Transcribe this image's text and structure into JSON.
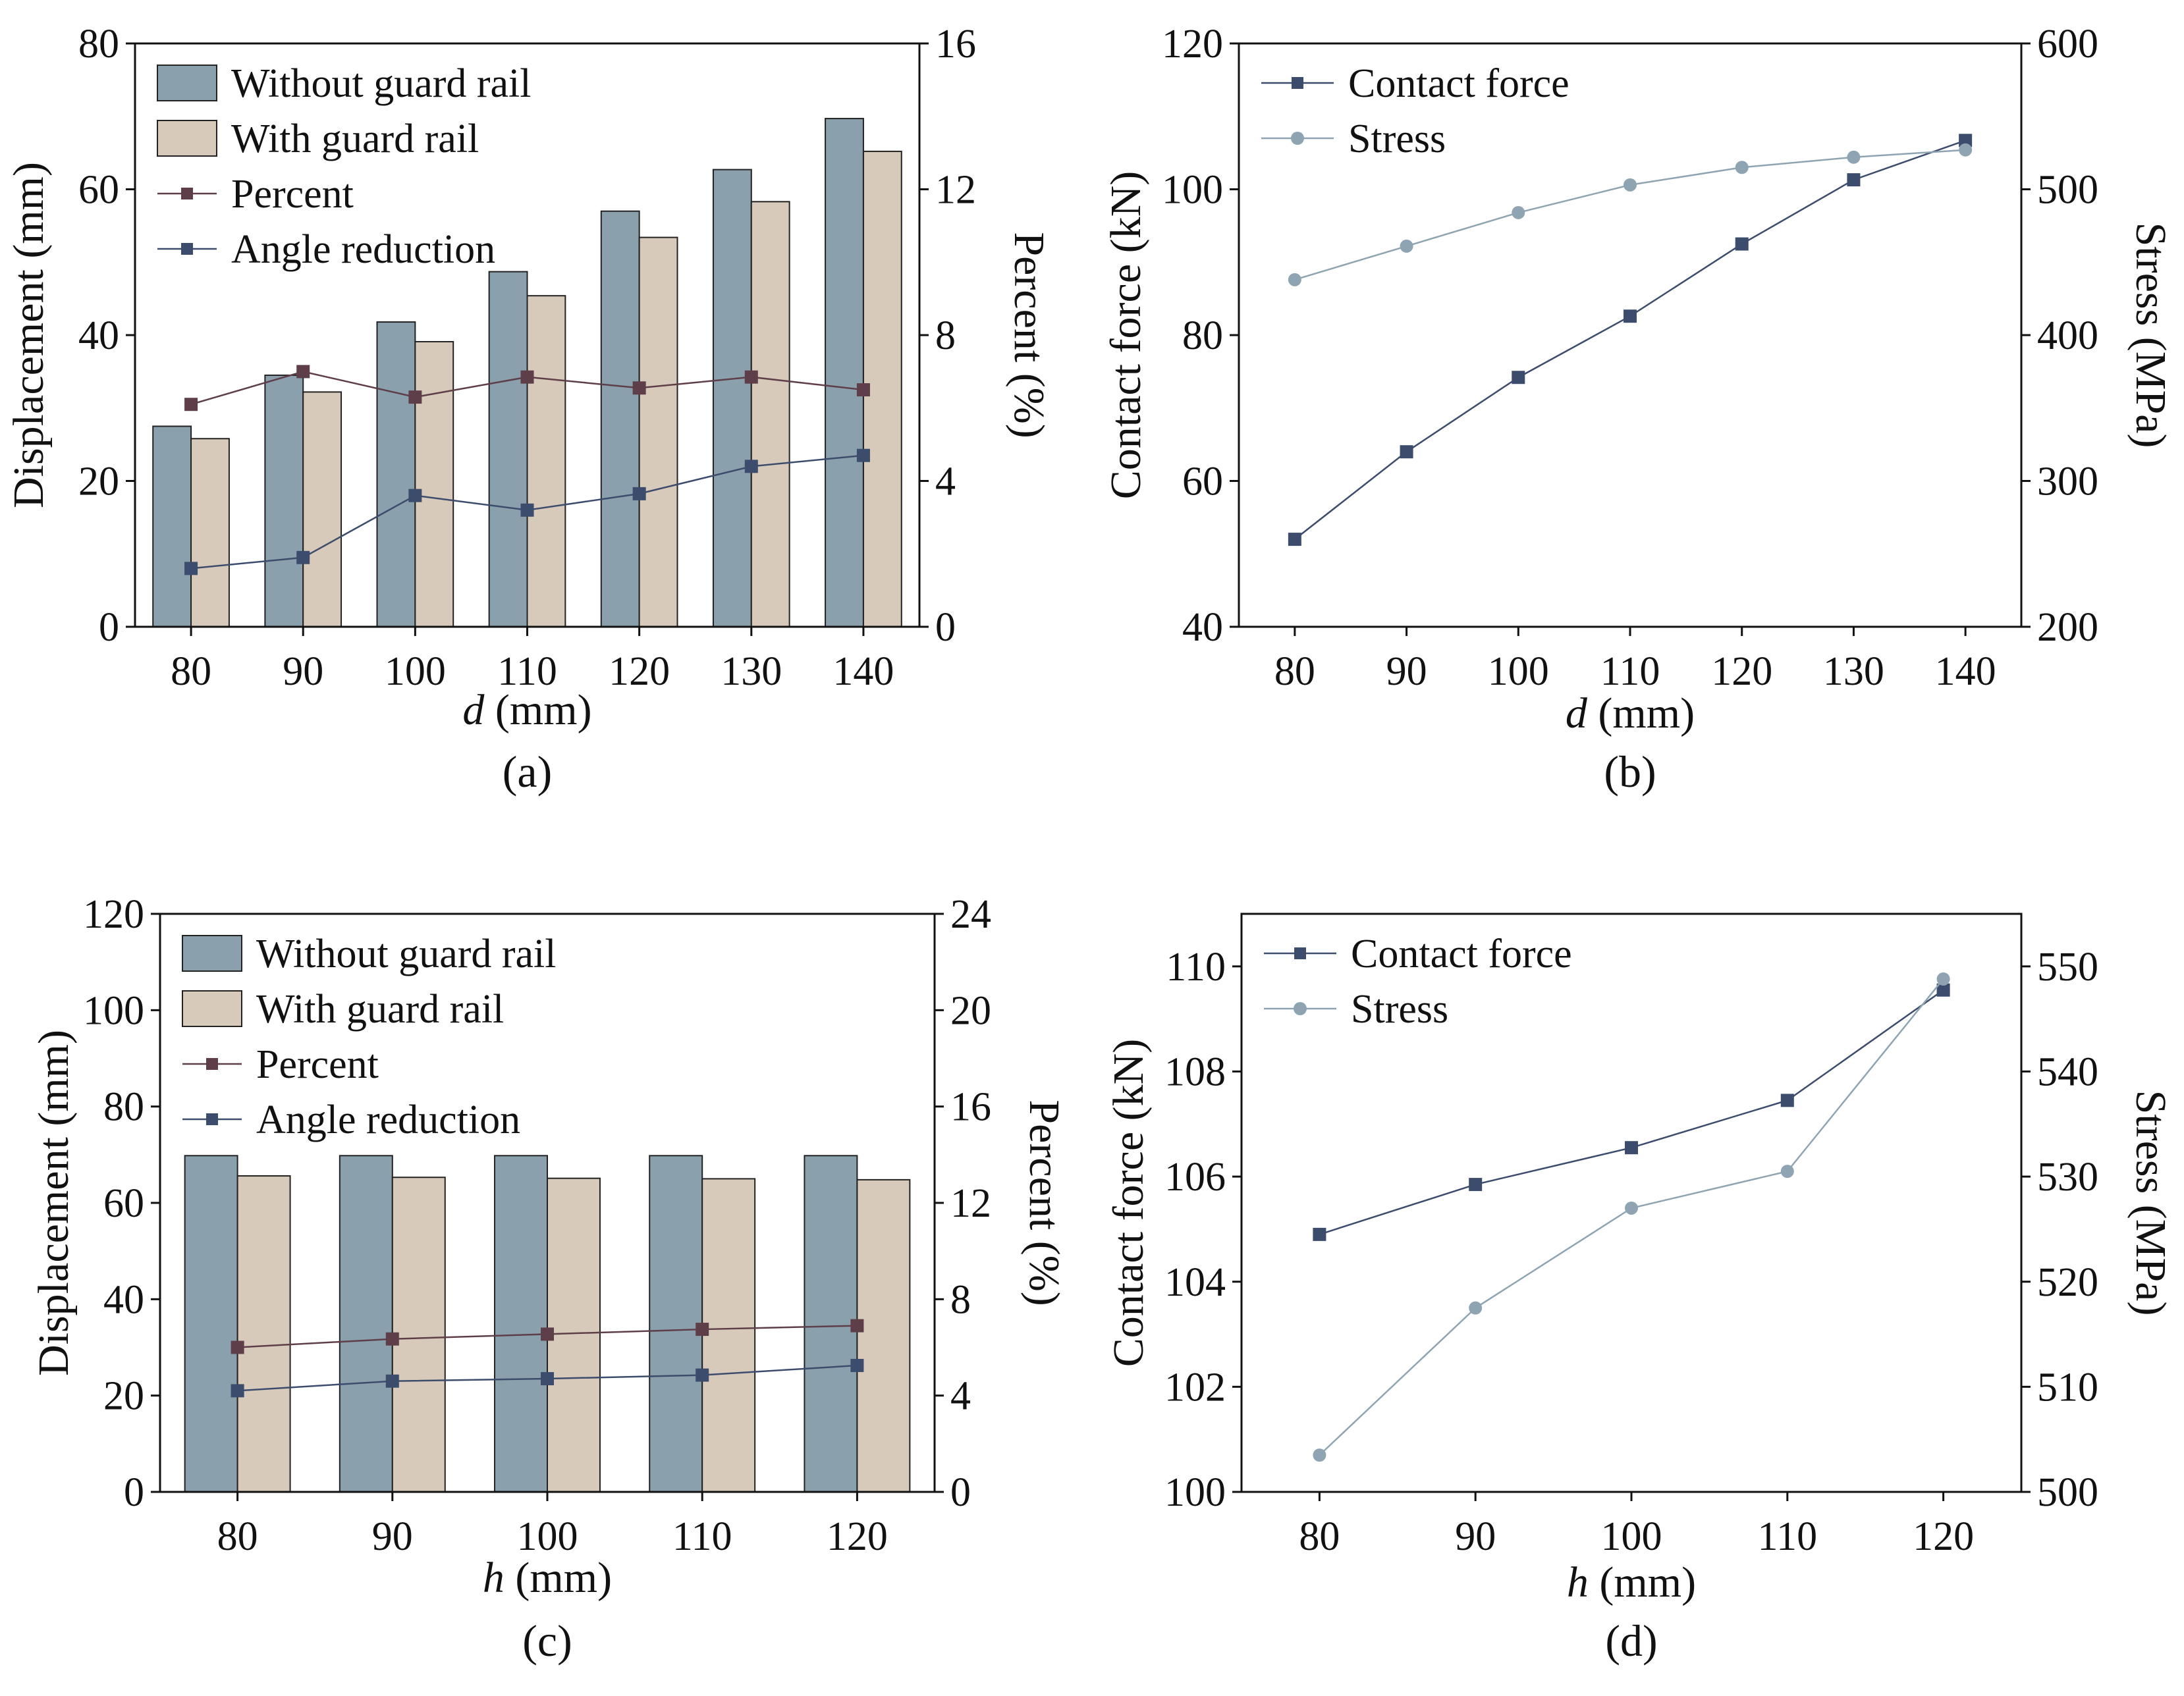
{
  "panels": [
    {
      "tag": "(a)",
      "chart_data": {
        "type": "bar",
        "xlabel": "(mm)",
        "xlabel_var": "d",
        "ylabel": "Displacement (mm)",
        "ylabel_right": "Percent (%)",
        "categories": [
          "80",
          "90",
          "100",
          "110",
          "120",
          "130",
          "140"
        ],
        "ylim": [
          0,
          80
        ],
        "yticks": [
          "0",
          "20",
          "40",
          "60",
          "80"
        ],
        "ylim_right": [
          0,
          16
        ],
        "yticks_right": [
          "0",
          "4",
          "8",
          "12",
          "16"
        ],
        "legend_position": "top-left",
        "bar_series": [
          {
            "name": "Without guard rail",
            "color": "#8aa0ad",
            "values": [
              27.5,
              34.5,
              41.8,
              48.7,
              57.0,
              62.7,
              69.7
            ]
          },
          {
            "name": "With guard rail",
            "color": "#d8cabb",
            "values": [
              25.8,
              32.2,
              39.1,
              45.4,
              53.4,
              58.3,
              65.2
            ]
          }
        ],
        "line_series": [
          {
            "name": "Percent",
            "color": "#5e3e48",
            "axis": "right",
            "values": [
              6.1,
              7.0,
              6.3,
              6.85,
              6.55,
              6.85,
              6.5
            ]
          },
          {
            "name": "Angle reduction",
            "color": "#3c4c6c",
            "axis": "right",
            "values": [
              1.6,
              1.9,
              3.6,
              3.2,
              3.65,
              4.4,
              4.7
            ]
          }
        ]
      }
    },
    {
      "tag": "(b)",
      "chart_data": {
        "type": "line",
        "xlabel": "(mm)",
        "xlabel_var": "d",
        "ylabel": "Contact force (kN)",
        "ylabel_right": "Stress (MPa)",
        "categories": [
          "80",
          "90",
          "100",
          "110",
          "120",
          "130",
          "140"
        ],
        "ylim": [
          40,
          120
        ],
        "yticks": [
          "40",
          "60",
          "80",
          "100",
          "120"
        ],
        "ylim_right": [
          200,
          600
        ],
        "yticks_right": [
          "200",
          "300",
          "400",
          "500",
          "600"
        ],
        "legend_position": "top-left",
        "line_series": [
          {
            "name": "Contact force",
            "color": "#3c4c6c",
            "marker": "square",
            "axis": "left",
            "values": [
              52.0,
              64.0,
              74.2,
              82.6,
              92.5,
              101.3,
              106.7
            ]
          },
          {
            "name": "Stress",
            "color": "#8ea4b2",
            "marker": "circle",
            "axis": "right",
            "values": [
              438,
              461,
              484,
              503,
              515,
              522,
              527
            ]
          }
        ]
      }
    },
    {
      "tag": "(c)",
      "chart_data": {
        "type": "bar",
        "xlabel": "(mm)",
        "xlabel_var": "h",
        "ylabel": "Displacement (mm)",
        "ylabel_right": "Percent (%)",
        "categories": [
          "80",
          "90",
          "100",
          "110",
          "120"
        ],
        "ylim": [
          0,
          120
        ],
        "yticks": [
          "0",
          "20",
          "40",
          "60",
          "80",
          "100",
          "120"
        ],
        "ylim_right": [
          0,
          24
        ],
        "yticks_right": [
          "0",
          "4",
          "8",
          "12",
          "16",
          "20",
          "24"
        ],
        "legend_position": "top-left",
        "bar_series": [
          {
            "name": "Without guard rail",
            "color": "#8aa0ad",
            "values": [
              69.8,
              69.8,
              69.8,
              69.8,
              69.8
            ]
          },
          {
            "name": "With guard rail",
            "color": "#d8cabb",
            "values": [
              65.6,
              65.3,
              65.1,
              65.0,
              64.8
            ]
          }
        ],
        "line_series": [
          {
            "name": "Percent",
            "color": "#5e3e48",
            "axis": "right",
            "values": [
              6.0,
              6.35,
              6.55,
              6.75,
              6.9
            ]
          },
          {
            "name": "Angle reduction",
            "color": "#3c4c6c",
            "axis": "right",
            "values": [
              4.2,
              4.6,
              4.7,
              4.85,
              5.25
            ]
          }
        ]
      }
    },
    {
      "tag": "(d)",
      "chart_data": {
        "type": "line",
        "xlabel": "(mm)",
        "xlabel_var": "h",
        "ylabel": "Contact force (kN)",
        "ylabel_right": "Stress (MPa)",
        "categories": [
          "80",
          "90",
          "100",
          "110",
          "120"
        ],
        "ylim": [
          100,
          111
        ],
        "yticks": [
          "100",
          "102",
          "104",
          "106",
          "108",
          "110"
        ],
        "ylim_right": [
          500,
          555
        ],
        "yticks_right": [
          "500",
          "510",
          "520",
          "530",
          "540",
          "550"
        ],
        "legend_position": "top-left",
        "line_series": [
          {
            "name": "Contact force",
            "color": "#3c4c6c",
            "marker": "square",
            "axis": "left",
            "values": [
              104.9,
              105.85,
              106.55,
              107.45,
              109.55
            ]
          },
          {
            "name": "Stress",
            "color": "#8ea4b2",
            "marker": "circle",
            "axis": "right",
            "values": [
              503.5,
              517.5,
              527.0,
              530.5,
              548.8
            ]
          }
        ]
      }
    }
  ]
}
